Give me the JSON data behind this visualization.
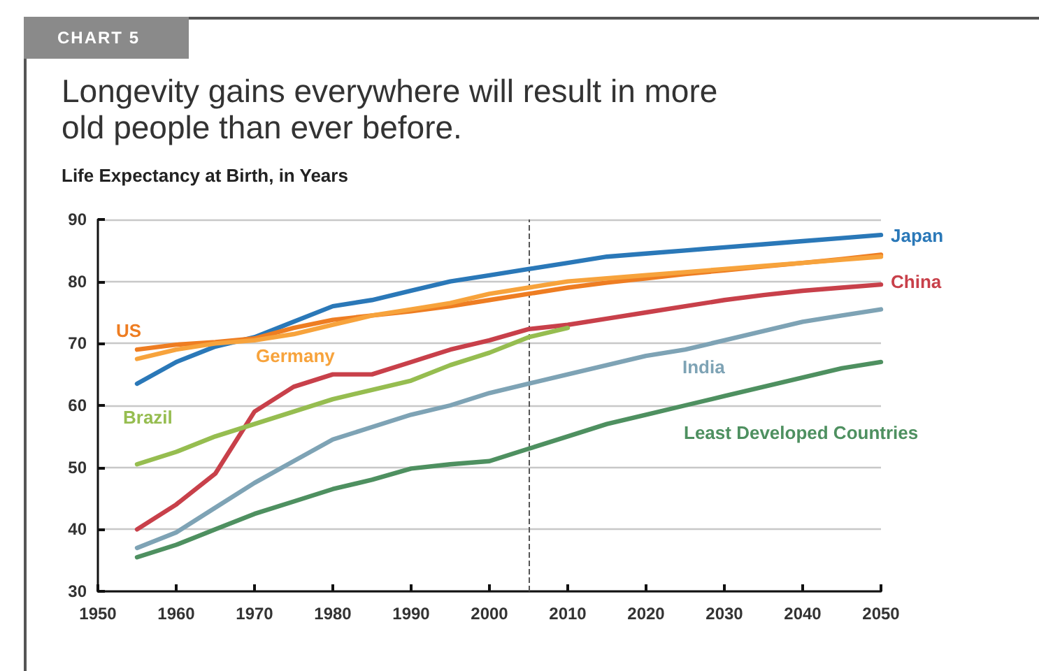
{
  "chart_data": {
    "type": "line",
    "title": "Longevity gains everywhere will result in more old people than ever before.",
    "subtitle": "Life Expectancy at Birth, in Years",
    "annotations": [
      "CHART 5"
    ],
    "x": [
      1955,
      1960,
      1965,
      1970,
      1975,
      1980,
      1985,
      1990,
      1995,
      2000,
      2005,
      2010,
      2015,
      2020,
      2025,
      2030,
      2035,
      2040,
      2045,
      2050
    ],
    "series": [
      {
        "name": "Japan",
        "color": "#2a78b8",
        "values": [
          63.5,
          67,
          69.5,
          71,
          73.5,
          76,
          77,
          78.5,
          80,
          81,
          82,
          83,
          84,
          84.5,
          85,
          85.5,
          86,
          86.5,
          87,
          87.5
        ]
      },
      {
        "name": "US",
        "color": "#ee7d22",
        "values": [
          69,
          69.8,
          70.2,
          70.8,
          72.5,
          73.8,
          74.5,
          75.2,
          76,
          77,
          78,
          79,
          79.8,
          80.5,
          81.2,
          81.8,
          82.4,
          83,
          83.6,
          84.3
        ]
      },
      {
        "name": "Germany",
        "color": "#f7a33c",
        "values": [
          67.5,
          69,
          70,
          70.5,
          71.5,
          73,
          74.5,
          75.5,
          76.5,
          78,
          79,
          80,
          80.5,
          81,
          81.5,
          82,
          82.5,
          83,
          83.5,
          84
        ]
      },
      {
        "name": "China",
        "color": "#c8404a",
        "values": [
          40,
          44,
          49,
          59,
          63,
          65,
          65,
          67,
          69,
          70.5,
          72.3,
          73,
          74,
          75,
          76,
          77,
          77.8,
          78.5,
          79,
          79.5
        ]
      },
      {
        "name": "Brazil",
        "color": "#96bd50",
        "values": [
          50.5,
          52.5,
          55,
          57,
          59,
          61,
          62.5,
          64,
          66.5,
          68.5,
          71,
          72.5,
          null,
          null,
          null,
          null,
          null,
          null,
          null,
          null
        ]
      },
      {
        "name": "India",
        "color": "#7ea3b5",
        "values": [
          37,
          39.5,
          43.5,
          47.5,
          51,
          54.5,
          56.5,
          58.5,
          60,
          62,
          63.5,
          65,
          66.5,
          68,
          69,
          70.5,
          72,
          73.5,
          74.5,
          75.5
        ]
      },
      {
        "name": "Least Developed Countries",
        "color": "#4e9060",
        "values": [
          35.5,
          37.5,
          40,
          42.5,
          44.5,
          46.5,
          48,
          49.8,
          50.5,
          51,
          53,
          55,
          57,
          58.5,
          60,
          61.5,
          63,
          64.5,
          66,
          67
        ]
      }
    ],
    "xlim": [
      1950,
      2050
    ],
    "xticks": [
      1950,
      1960,
      1970,
      1980,
      1990,
      2000,
      2010,
      2020,
      2030,
      2040,
      2050
    ],
    "ylim": [
      30,
      90
    ],
    "yticks": [
      30,
      40,
      50,
      60,
      70,
      80,
      90
    ],
    "ref_lines": [
      {
        "axis": "x",
        "value": 2005,
        "color": "#555555",
        "line_style": "dashed"
      }
    ],
    "grid": "y",
    "legend": false,
    "marker": "none",
    "line_style": "solid"
  }
}
